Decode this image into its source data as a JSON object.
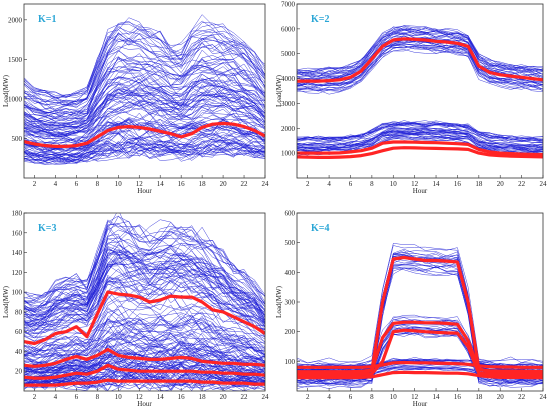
{
  "chart_data": [
    {
      "type": "line",
      "panel_label": "K=1",
      "xlabel": "Hour",
      "ylabel": "Load(MW)",
      "xlim": [
        1,
        24
      ],
      "ylim": [
        0,
        2200
      ],
      "xticks": [
        2,
        4,
        6,
        8,
        10,
        12,
        14,
        16,
        18,
        20,
        22,
        24
      ],
      "yticks": [
        500,
        1000,
        1500,
        2000
      ],
      "profile_color": "#1f1fd6",
      "center_color": "#ff2424",
      "x": [
        1,
        2,
        3,
        4,
        5,
        6,
        7,
        8,
        9,
        10,
        11,
        12,
        13,
        14,
        15,
        16,
        17,
        18,
        19,
        20,
        21,
        22,
        23,
        24
      ],
      "series": [
        {
          "values": [
            460,
            430,
            410,
            400,
            400,
            410,
            440,
            520,
            600,
            640,
            650,
            640,
            620,
            590,
            560,
            520,
            560,
            640,
            680,
            690,
            680,
            650,
            600,
            530
          ]
        }
      ],
      "background_profiles": {
        "count": 120,
        "min_shape": [
          250,
          230,
          220,
          215,
          215,
          220,
          240,
          280,
          310,
          330,
          330,
          330,
          320,
          310,
          300,
          290,
          300,
          320,
          340,
          345,
          340,
          330,
          310,
          280
        ],
        "max_shape": [
          1250,
          1150,
          1100,
          1060,
          1060,
          1080,
          1150,
          1500,
          1850,
          1980,
          1970,
          1950,
          1900,
          1850,
          1700,
          1680,
          1850,
          2000,
          1950,
          1900,
          1850,
          1750,
          1600,
          1400
        ]
      }
    },
    {
      "type": "line",
      "panel_label": "K=2",
      "xlabel": "Hour",
      "ylabel": "Load(MW)",
      "xlim": [
        1,
        24
      ],
      "ylim": [
        0,
        7000
      ],
      "xticks": [
        2,
        4,
        6,
        8,
        10,
        12,
        14,
        16,
        18,
        20,
        22,
        24
      ],
      "yticks": [
        1000,
        2000,
        3000,
        4000,
        5000,
        6000,
        7000
      ],
      "profile_color": "#1f1fd6",
      "center_color": "#ff2424",
      "x": [
        1,
        2,
        3,
        4,
        5,
        6,
        7,
        8,
        9,
        10,
        11,
        12,
        13,
        14,
        15,
        16,
        17,
        18,
        19,
        20,
        21,
        22,
        23,
        24
      ],
      "series": [
        {
          "values": [
            3900,
            3900,
            3900,
            3920,
            3950,
            4050,
            4300,
            4800,
            5300,
            5550,
            5600,
            5580,
            5550,
            5500,
            5470,
            5420,
            5300,
            4500,
            4250,
            4150,
            4100,
            4050,
            4000,
            3950
          ]
        },
        {
          "values": [
            1000,
            1000,
            1000,
            1000,
            1010,
            1050,
            1100,
            1200,
            1400,
            1450,
            1450,
            1440,
            1430,
            1420,
            1400,
            1380,
            1350,
            1150,
            1050,
            1000,
            980,
            960,
            950,
            940
          ]
        },
        {
          "values": [
            850,
            840,
            830,
            830,
            840,
            860,
            900,
            980,
            1100,
            1200,
            1220,
            1210,
            1200,
            1190,
            1180,
            1170,
            1150,
            1000,
            930,
            900,
            880,
            870,
            860,
            850
          ]
        }
      ],
      "background_profiles": {
        "count": 80,
        "groups": [
          {
            "base": [
              3900,
              3900,
              3900,
              3920,
              3950,
              4050,
              4300,
              4800,
              5300,
              5550,
              5600,
              5580,
              5550,
              5500,
              5470,
              5420,
              5300,
              4500,
              4250,
              4150,
              4100,
              4050,
              4000,
              3950
            ],
            "spread": 900
          },
          {
            "base": [
              1300,
              1300,
              1300,
              1300,
              1310,
              1350,
              1420,
              1550,
              1800,
              1900,
              1920,
              1900,
              1890,
              1870,
              1850,
              1830,
              1800,
              1500,
              1400,
              1330,
              1300,
              1280,
              1270,
              1260
            ],
            "spread": 700
          }
        ]
      }
    },
    {
      "type": "line",
      "panel_label": "K=3",
      "xlabel": "Hour",
      "ylabel": "Load(MW)",
      "xlim": [
        1,
        24
      ],
      "ylim": [
        0,
        180
      ],
      "xticks": [
        2,
        4,
        6,
        8,
        10,
        12,
        14,
        16,
        18,
        20,
        22,
        24
      ],
      "yticks": [
        20,
        40,
        60,
        80,
        100,
        120,
        140,
        160,
        180
      ],
      "profile_color": "#1f1fd6",
      "center_color": "#ff2424",
      "x": [
        1,
        2,
        3,
        4,
        5,
        6,
        7,
        8,
        9,
        10,
        11,
        12,
        13,
        14,
        15,
        16,
        17,
        18,
        19,
        20,
        21,
        22,
        23,
        24
      ],
      "series": [
        {
          "values": [
            50,
            48,
            52,
            58,
            60,
            65,
            55,
            78,
            100,
            98,
            97,
            95,
            90,
            92,
            96,
            95,
            95,
            90,
            82,
            80,
            75,
            70,
            65,
            58
          ]
        },
        {
          "values": [
            26,
            25,
            26,
            28,
            32,
            35,
            32,
            36,
            42,
            36,
            34,
            33,
            32,
            32,
            33,
            34,
            33,
            30,
            29,
            28,
            28,
            27,
            27,
            26
          ]
        },
        {
          "values": [
            14,
            13,
            13,
            14,
            16,
            18,
            17,
            20,
            26,
            22,
            21,
            20,
            20,
            20,
            20,
            20,
            20,
            19,
            19,
            18,
            18,
            17,
            17,
            16
          ]
        },
        {
          "values": [
            6,
            6,
            6,
            6,
            7,
            8,
            8,
            9,
            11,
            10,
            10,
            10,
            10,
            10,
            10,
            10,
            10,
            9,
            9,
            8,
            8,
            8,
            7,
            7
          ]
        }
      ],
      "background_profiles": {
        "count": 160,
        "min_shape": [
          5,
          5,
          5,
          5,
          6,
          6,
          6,
          7,
          8,
          8,
          8,
          8,
          8,
          8,
          8,
          8,
          8,
          7,
          7,
          6,
          6,
          6,
          6,
          6
        ],
        "max_shape": [
          100,
          95,
          100,
          110,
          115,
          118,
          112,
          140,
          175,
          178,
          170,
          165,
          160,
          165,
          170,
          168,
          165,
          160,
          150,
          140,
          130,
          120,
          110,
          95
        ]
      }
    },
    {
      "type": "line",
      "panel_label": "K=4",
      "xlabel": "Hour",
      "ylabel": "Load(MW)",
      "xlim": [
        1,
        24
      ],
      "ylim": [
        0,
        600
      ],
      "xticks": [
        2,
        4,
        6,
        8,
        10,
        12,
        14,
        16,
        18,
        20,
        22,
        24
      ],
      "yticks": [
        100,
        200,
        300,
        400,
        500,
        600
      ],
      "profile_color": "#1f1fd6",
      "center_color": "#ff2424",
      "x": [
        1,
        2,
        3,
        4,
        5,
        6,
        7,
        8,
        9,
        10,
        11,
        12,
        13,
        14,
        15,
        16,
        17,
        18,
        19,
        20,
        21,
        22,
        23,
        24
      ],
      "series": [
        {
          "values": [
            60,
            60,
            60,
            60,
            60,
            60,
            62,
            70,
            300,
            445,
            450,
            445,
            440,
            440,
            438,
            435,
            300,
            75,
            65,
            62,
            62,
            62,
            62,
            62
          ]
        },
        {
          "values": [
            65,
            65,
            65,
            65,
            65,
            65,
            66,
            70,
            180,
            228,
            232,
            232,
            230,
            230,
            228,
            225,
            170,
            72,
            68,
            67,
            67,
            67,
            66,
            66
          ]
        },
        {
          "values": [
            55,
            55,
            55,
            55,
            55,
            55,
            56,
            58,
            100,
            200,
            205,
            203,
            200,
            198,
            196,
            195,
            150,
            60,
            57,
            56,
            56,
            56,
            55,
            55
          ]
        },
        {
          "values": [
            80,
            80,
            80,
            80,
            80,
            80,
            80,
            82,
            88,
            95,
            96,
            95,
            95,
            94,
            93,
            92,
            90,
            85,
            82,
            81,
            81,
            80,
            80,
            80
          ]
        },
        {
          "values": [
            45,
            45,
            45,
            45,
            45,
            45,
            46,
            48,
            55,
            62,
            63,
            62,
            62,
            61,
            60,
            60,
            58,
            52,
            48,
            46,
            46,
            46,
            45,
            45
          ]
        }
      ],
      "background_profiles": {
        "count": 70,
        "groups": [
          {
            "base": [
              60,
              60,
              60,
              60,
              60,
              60,
              62,
              70,
              300,
              445,
              450,
              445,
              440,
              440,
              438,
              435,
              300,
              75,
              65,
              62,
              62,
              62,
              62,
              62
            ],
            "spread": 90
          },
          {
            "base": [
              60,
              60,
              60,
              60,
              60,
              60,
              62,
              70,
              170,
              220,
              225,
              225,
              222,
              220,
              218,
              215,
              160,
              70,
              65,
              62,
              62,
              62,
              62,
              62
            ],
            "spread": 70
          },
          {
            "base": [
              70,
              70,
              70,
              70,
              70,
              70,
              70,
              72,
              80,
              90,
              92,
              92,
              91,
              90,
              90,
              89,
              86,
              80,
              75,
              72,
              72,
              71,
              71,
              71
            ],
            "spread": 40
          }
        ]
      }
    }
  ]
}
